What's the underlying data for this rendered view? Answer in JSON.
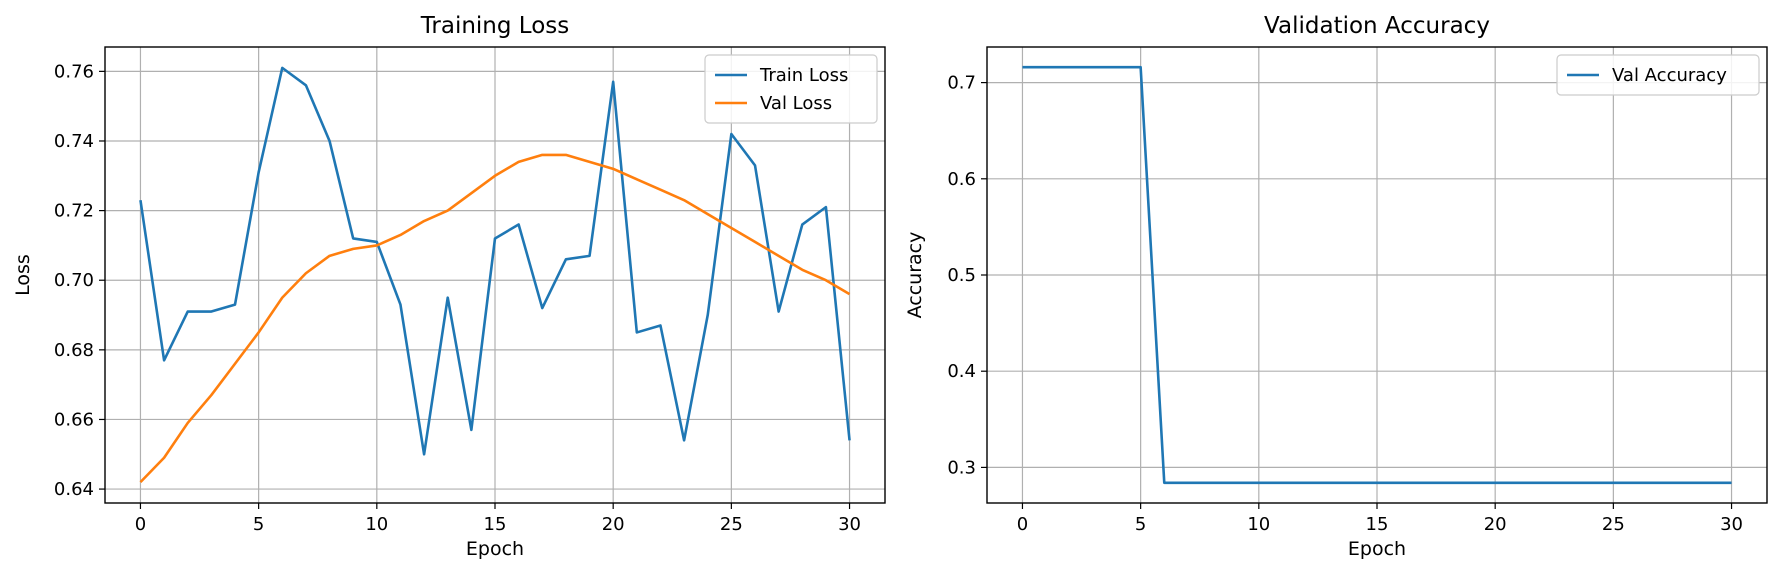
{
  "chart_data": [
    {
      "type": "line",
      "title": "Training Loss",
      "xlabel": "Epoch",
      "ylabel": "Loss",
      "xlim": [
        -1.5,
        31.5
      ],
      "ylim": [
        0.636,
        0.767
      ],
      "xticks": [
        0,
        5,
        10,
        15,
        20,
        25,
        30
      ],
      "yticks": [
        0.64,
        0.66,
        0.68,
        0.7,
        0.72,
        0.74,
        0.76
      ],
      "ytick_labels": [
        "0.64",
        "0.66",
        "0.68",
        "0.70",
        "0.72",
        "0.74",
        "0.76"
      ],
      "grid": true,
      "legend_position": "upper right",
      "series": [
        {
          "name": "Train Loss",
          "color": "#1f77b4",
          "x": [
            0,
            1,
            2,
            3,
            4,
            5,
            6,
            7,
            8,
            9,
            10,
            11,
            12,
            13,
            14,
            15,
            16,
            17,
            18,
            19,
            20,
            21,
            22,
            23,
            24,
            25,
            26,
            27,
            28,
            29,
            30
          ],
          "y": [
            0.723,
            0.677,
            0.691,
            0.691,
            0.693,
            0.731,
            0.761,
            0.756,
            0.74,
            0.712,
            0.711,
            0.693,
            0.65,
            0.695,
            0.657,
            0.712,
            0.716,
            0.692,
            0.706,
            0.707,
            0.757,
            0.685,
            0.687,
            0.654,
            0.69,
            0.742,
            0.733,
            0.691,
            0.716,
            0.721,
            0.654
          ]
        },
        {
          "name": "Val Loss",
          "color": "#ff7f0e",
          "x": [
            0,
            1,
            2,
            3,
            4,
            5,
            6,
            7,
            8,
            9,
            10,
            11,
            12,
            13,
            14,
            15,
            16,
            17,
            18,
            19,
            20,
            21,
            22,
            23,
            24,
            25,
            26,
            27,
            28,
            29,
            30
          ],
          "y": [
            0.642,
            0.649,
            0.659,
            0.667,
            0.676,
            0.685,
            0.695,
            0.702,
            0.707,
            0.709,
            0.71,
            0.713,
            0.717,
            0.72,
            0.725,
            0.73,
            0.734,
            0.736,
            0.736,
            0.734,
            0.732,
            0.729,
            0.726,
            0.723,
            0.719,
            0.715,
            0.711,
            0.707,
            0.703,
            0.7,
            0.696
          ]
        }
      ]
    },
    {
      "type": "line",
      "title": "Validation Accuracy",
      "xlabel": "Epoch",
      "ylabel": "Accuracy",
      "xlim": [
        -1.5,
        31.5
      ],
      "ylim": [
        0.263,
        0.737
      ],
      "xticks": [
        0,
        5,
        10,
        15,
        20,
        25,
        30
      ],
      "yticks": [
        0.3,
        0.4,
        0.5,
        0.6,
        0.7
      ],
      "ytick_labels": [
        "0.3",
        "0.4",
        "0.5",
        "0.6",
        "0.7"
      ],
      "grid": true,
      "legend_position": "upper right",
      "series": [
        {
          "name": "Val Accuracy",
          "color": "#1f77b4",
          "x": [
            0,
            1,
            2,
            3,
            4,
            5,
            6,
            7,
            8,
            9,
            10,
            11,
            12,
            13,
            14,
            15,
            16,
            17,
            18,
            19,
            20,
            21,
            22,
            23,
            24,
            25,
            26,
            27,
            28,
            29,
            30
          ],
          "y": [
            0.716,
            0.716,
            0.716,
            0.716,
            0.716,
            0.716,
            0.284,
            0.284,
            0.284,
            0.284,
            0.284,
            0.284,
            0.284,
            0.284,
            0.284,
            0.284,
            0.284,
            0.284,
            0.284,
            0.284,
            0.284,
            0.284,
            0.284,
            0.284,
            0.284,
            0.284,
            0.284,
            0.284,
            0.284,
            0.284,
            0.284
          ]
        }
      ]
    }
  ]
}
